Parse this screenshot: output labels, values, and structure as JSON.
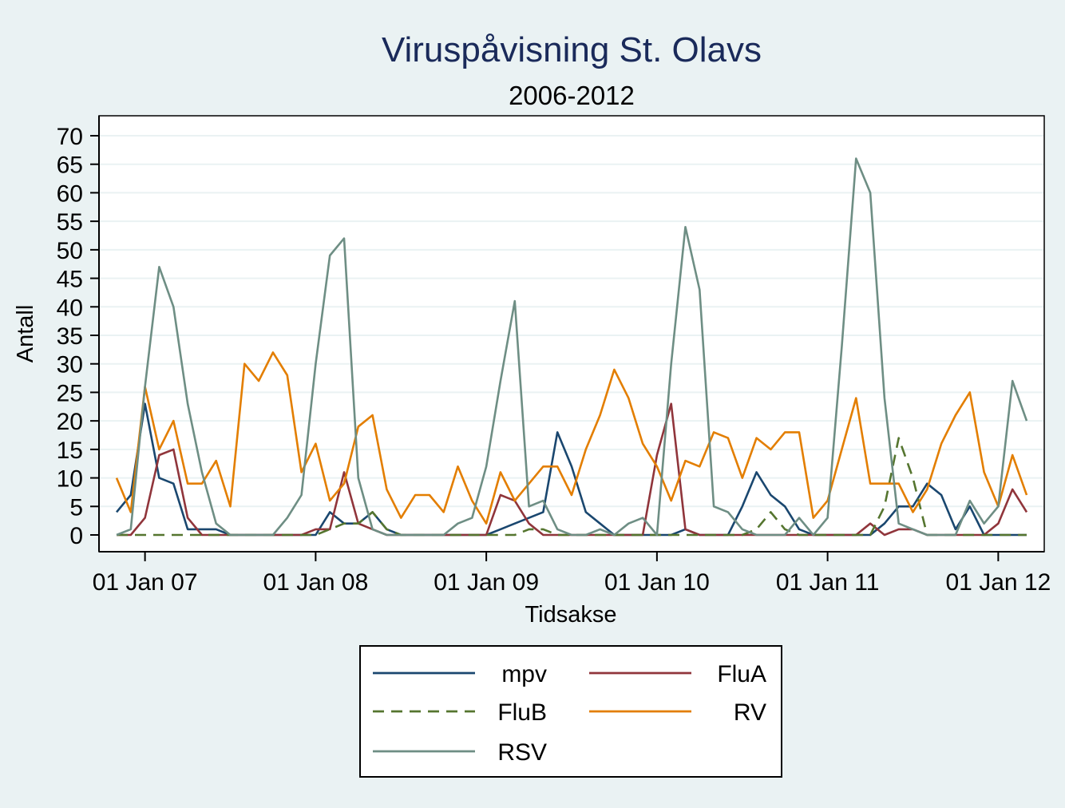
{
  "chart_data": {
    "type": "line",
    "title": "Viruspåvisning St. Olavs",
    "subtitle": "2006-2012",
    "xlabel": "Tidsakse",
    "ylabel": "Antall",
    "x": [
      "2006-11",
      "2006-12",
      "2007-01",
      "2007-02",
      "2007-03",
      "2007-04",
      "2007-05",
      "2007-06",
      "2007-07",
      "2007-08",
      "2007-09",
      "2007-10",
      "2007-11",
      "2007-12",
      "2008-01",
      "2008-02",
      "2008-03",
      "2008-04",
      "2008-05",
      "2008-06",
      "2008-07",
      "2008-08",
      "2008-09",
      "2008-10",
      "2008-11",
      "2008-12",
      "2009-01",
      "2009-02",
      "2009-03",
      "2009-04",
      "2009-05",
      "2009-06",
      "2009-07",
      "2009-08",
      "2009-09",
      "2009-10",
      "2009-11",
      "2009-12",
      "2010-01",
      "2010-02",
      "2010-03",
      "2010-04",
      "2010-05",
      "2010-06",
      "2010-07",
      "2010-08",
      "2010-09",
      "2010-10",
      "2010-11",
      "2010-12",
      "2011-01",
      "2011-02",
      "2011-03",
      "2011-04",
      "2011-05",
      "2011-06",
      "2011-07",
      "2011-08",
      "2011-09",
      "2011-10",
      "2011-11",
      "2011-12",
      "2012-01",
      "2012-02",
      "2012-03"
    ],
    "xticks": [
      "2007-01",
      "2008-01",
      "2009-01",
      "2010-01",
      "2011-01",
      "2012-01"
    ],
    "xtick_labels": [
      "01 Jan 07",
      "01 Jan 08",
      "01 Jan 09",
      "01 Jan 10",
      "01 Jan 11",
      "01 Jan 12"
    ],
    "ylim": [
      0,
      70
    ],
    "yticks": [
      0,
      5,
      10,
      15,
      20,
      25,
      30,
      35,
      40,
      45,
      50,
      55,
      60,
      65,
      70
    ],
    "grid": true,
    "legend_position": "bottom",
    "series": [
      {
        "name": "mpv",
        "color": "#1a476f",
        "dash": "solid",
        "values": [
          4,
          7,
          23,
          10,
          9,
          1,
          1,
          1,
          0,
          0,
          0,
          0,
          0,
          0,
          0,
          4,
          2,
          2,
          4,
          1,
          0,
          0,
          0,
          0,
          0,
          0,
          0,
          1,
          2,
          3,
          4,
          18,
          12,
          4,
          2,
          0,
          0,
          0,
          0,
          0,
          1,
          0,
          0,
          0,
          5,
          11,
          7,
          5,
          1,
          0,
          0,
          0,
          0,
          0,
          2,
          5,
          5,
          9,
          7,
          1,
          5,
          0,
          0,
          0,
          0
        ]
      },
      {
        "name": "FluA",
        "color": "#90353b",
        "dash": "solid",
        "values": [
          0,
          0,
          3,
          14,
          15,
          3,
          0,
          0,
          0,
          0,
          0,
          0,
          0,
          0,
          1,
          1,
          11,
          2,
          1,
          0,
          0,
          0,
          0,
          0,
          0,
          0,
          0,
          7,
          6,
          2,
          0,
          0,
          0,
          0,
          0,
          0,
          0,
          0,
          14,
          23,
          1,
          0,
          0,
          0,
          0,
          0,
          0,
          0,
          0,
          0,
          0,
          0,
          0,
          2,
          0,
          1,
          1,
          0,
          0,
          0,
          0,
          0,
          2,
          8,
          4
        ]
      },
      {
        "name": "FluB",
        "color": "#55752f",
        "dash": "dashed",
        "values": [
          0,
          0,
          0,
          0,
          0,
          0,
          0,
          0,
          0,
          0,
          0,
          0,
          0,
          0,
          0,
          1,
          2,
          2,
          4,
          1,
          0,
          0,
          0,
          0,
          0,
          0,
          0,
          0,
          0,
          1,
          1,
          0,
          0,
          0,
          0,
          0,
          0,
          0,
          0,
          0,
          0,
          0,
          0,
          0,
          0,
          1,
          4,
          1,
          0,
          0,
          0,
          0,
          0,
          0,
          5,
          17,
          10,
          0,
          0,
          0,
          0,
          0,
          0,
          0,
          0
        ]
      },
      {
        "name": "RV",
        "color": "#e37e00",
        "dash": "solid",
        "values": [
          10,
          4,
          26,
          15,
          20,
          9,
          9,
          13,
          5,
          30,
          27,
          32,
          28,
          11,
          16,
          6,
          9,
          19,
          21,
          8,
          3,
          7,
          7,
          4,
          12,
          6,
          2,
          11,
          6,
          9,
          12,
          12,
          7,
          15,
          21,
          29,
          24,
          16,
          12,
          6,
          13,
          12,
          18,
          17,
          10,
          17,
          15,
          18,
          18,
          3,
          6,
          15,
          24,
          9,
          9,
          9,
          4,
          8,
          16,
          21,
          25,
          11,
          5,
          14,
          7
        ]
      },
      {
        "name": "RSV",
        "color": "#6e8e84",
        "dash": "solid",
        "values": [
          0,
          1,
          26,
          47,
          40,
          23,
          11,
          2,
          0,
          0,
          0,
          0,
          3,
          7,
          30,
          49,
          52,
          10,
          1,
          0,
          0,
          0,
          0,
          0,
          2,
          3,
          12,
          27,
          41,
          5,
          6,
          1,
          0,
          0,
          1,
          0,
          2,
          3,
          0,
          30,
          54,
          43,
          5,
          4,
          1,
          0,
          0,
          0,
          3,
          0,
          3,
          33,
          66,
          60,
          24,
          2,
          1,
          0,
          0,
          0,
          6,
          2,
          5,
          27,
          20
        ]
      }
    ]
  }
}
